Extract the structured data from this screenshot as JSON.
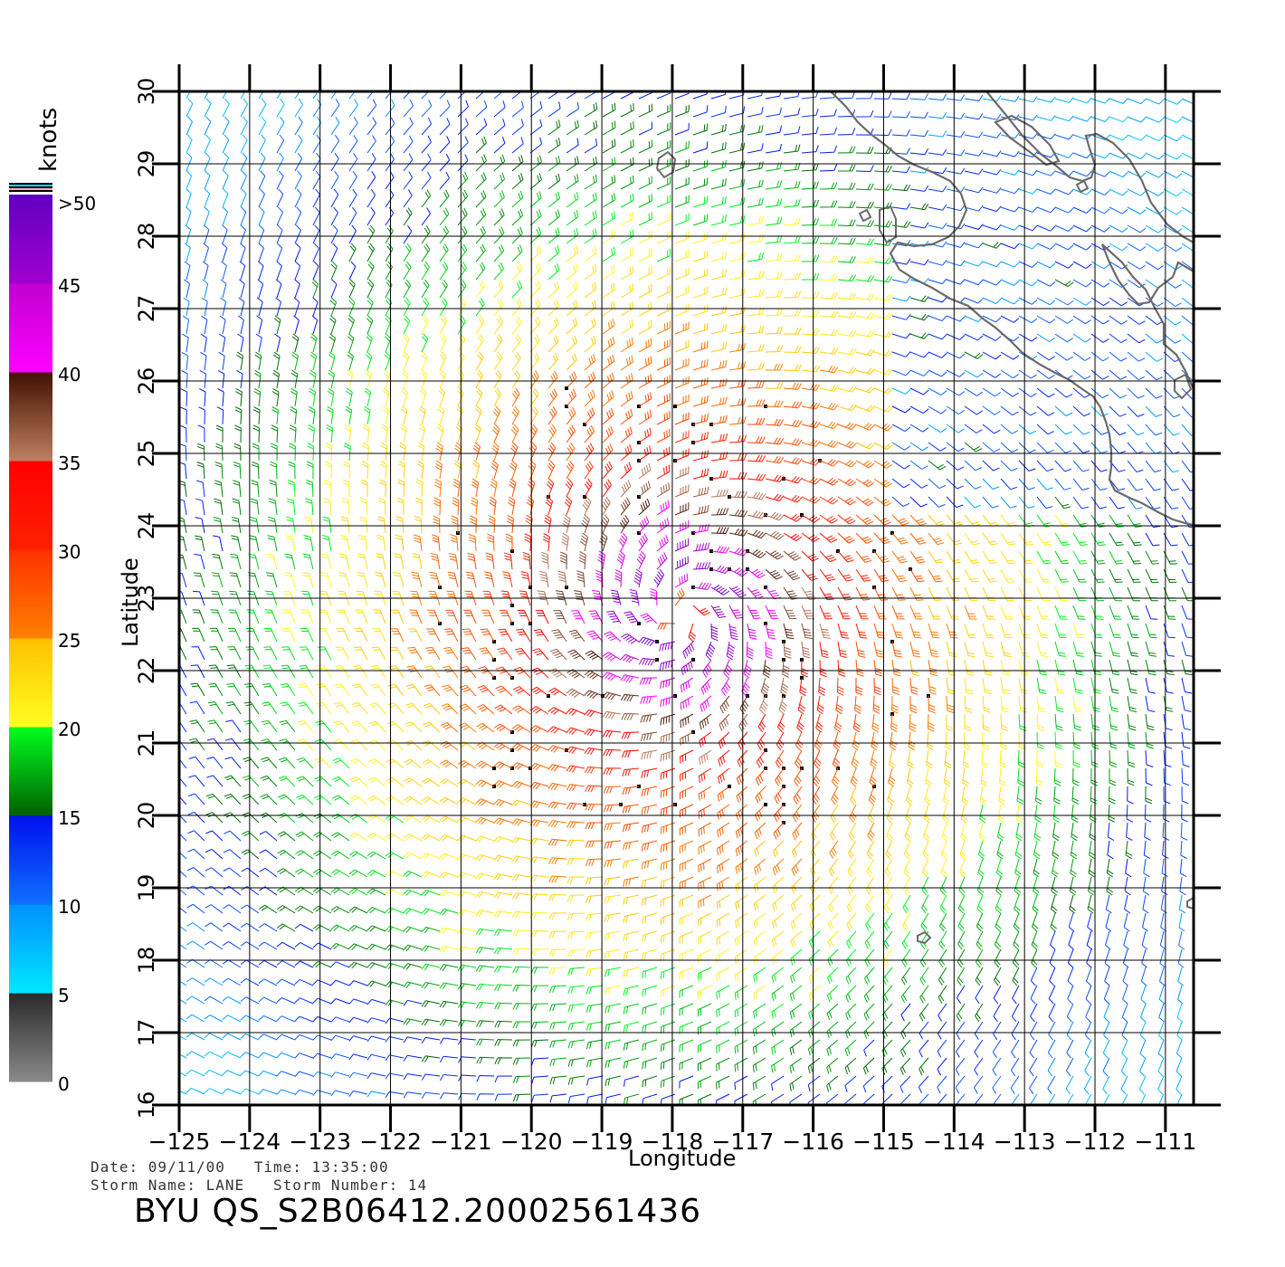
{
  "colorbar": {
    "unit_label": "knots",
    "top_label": ">50",
    "tick_labels": [
      "0",
      "5",
      "10",
      "15",
      "20",
      "25",
      "30",
      "35",
      "40",
      "45"
    ],
    "speed_bands": [
      {
        "from": 0,
        "to": 5,
        "colors": [
          "#8a8a8a",
          "#2a2a2a"
        ]
      },
      {
        "from": 5,
        "to": 10,
        "colors": [
          "#00e8ff",
          "#0090ff"
        ]
      },
      {
        "from": 10,
        "to": 15,
        "colors": [
          "#1070ff",
          "#0010f0"
        ]
      },
      {
        "from": 15,
        "to": 20,
        "colors": [
          "#006000",
          "#00ff20"
        ]
      },
      {
        "from": 20,
        "to": 25,
        "colors": [
          "#ffff20",
          "#ffc000"
        ]
      },
      {
        "from": 25,
        "to": 30,
        "colors": [
          "#ff8000",
          "#ff3000"
        ]
      },
      {
        "from": 30,
        "to": 35,
        "colors": [
          "#ff2000",
          "#ff0000"
        ]
      },
      {
        "from": 35,
        "to": 40,
        "colors": [
          "#c08060",
          "#401000"
        ]
      },
      {
        "from": 40,
        "to": 45,
        "colors": [
          "#ff00ff",
          "#c000d0"
        ]
      },
      {
        "from": 45,
        "to": 50,
        "colors": [
          "#a000d0",
          "#6000c0"
        ]
      }
    ]
  },
  "map": {
    "ylabel": "Latitude",
    "xlabel": "Longitude",
    "lat_ticks": [
      "16",
      "17",
      "18",
      "19",
      "20",
      "21",
      "22",
      "23",
      "24",
      "25",
      "26",
      "27",
      "28",
      "29",
      "30"
    ],
    "lon_ticks": [
      "−125",
      "−124",
      "−123",
      "−122",
      "−121",
      "−120",
      "−119",
      "−118",
      "−117",
      "−116",
      "−115",
      "−114",
      "−113",
      "−112",
      "−111"
    ],
    "lat_range": [
      16,
      30
    ],
    "lon_range": [
      -125,
      -110.6
    ],
    "storm_center": {
      "lon": -117.9,
      "lat": 22.8
    },
    "coastline_color": "#6a6a6a"
  },
  "footer": {
    "line1": "Date: 09/11/00   Time: 13:35:00",
    "line2": "Storm Name: LANE   Storm Number: 14",
    "product": "BYU QS_S2B06412.20002561436"
  }
}
